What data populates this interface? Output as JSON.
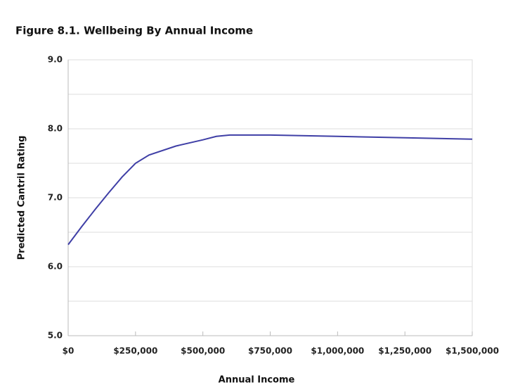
{
  "chart_data": {
    "type": "line",
    "title": "Figure 8.1. Wellbeing By Annual Income",
    "x_label": "Annual Income",
    "y_label": "Predicted Cantril Rating",
    "x": [
      0,
      50000,
      100000,
      150000,
      200000,
      250000,
      300000,
      400000,
      500000,
      550000,
      600000,
      750000,
      1000000,
      1250000,
      1500000
    ],
    "series": [
      {
        "name": "Predicted Cantril Rating",
        "color": "#3f3fa6",
        "values": [
          6.32,
          6.58,
          6.83,
          7.07,
          7.3,
          7.5,
          7.62,
          7.75,
          7.84,
          7.89,
          7.91,
          7.91,
          7.89,
          7.87,
          7.85
        ]
      }
    ],
    "xlim": [
      0,
      1500000
    ],
    "xticks": [
      {
        "value": 0,
        "label": "$0"
      },
      {
        "value": 250000,
        "label": "$250,000"
      },
      {
        "value": 500000,
        "label": "$500,000"
      },
      {
        "value": 750000,
        "label": "$750,000"
      },
      {
        "value": 1000000,
        "label": "$1,000,000"
      },
      {
        "value": 1250000,
        "label": "$1,250,000"
      },
      {
        "value": 1500000,
        "label": "$1,500,000"
      }
    ],
    "ylim": [
      5,
      9
    ],
    "yticks": [
      {
        "value": 5,
        "label": "5.0"
      },
      {
        "value": 6,
        "label": "6.0"
      },
      {
        "value": 7,
        "label": "7.0"
      },
      {
        "value": 8,
        "label": "8.0"
      },
      {
        "value": 9,
        "label": "9.0"
      }
    ],
    "y_minor_gridlines": [
      5.5,
      6.5,
      7.5,
      8.5
    ],
    "grid": true
  }
}
